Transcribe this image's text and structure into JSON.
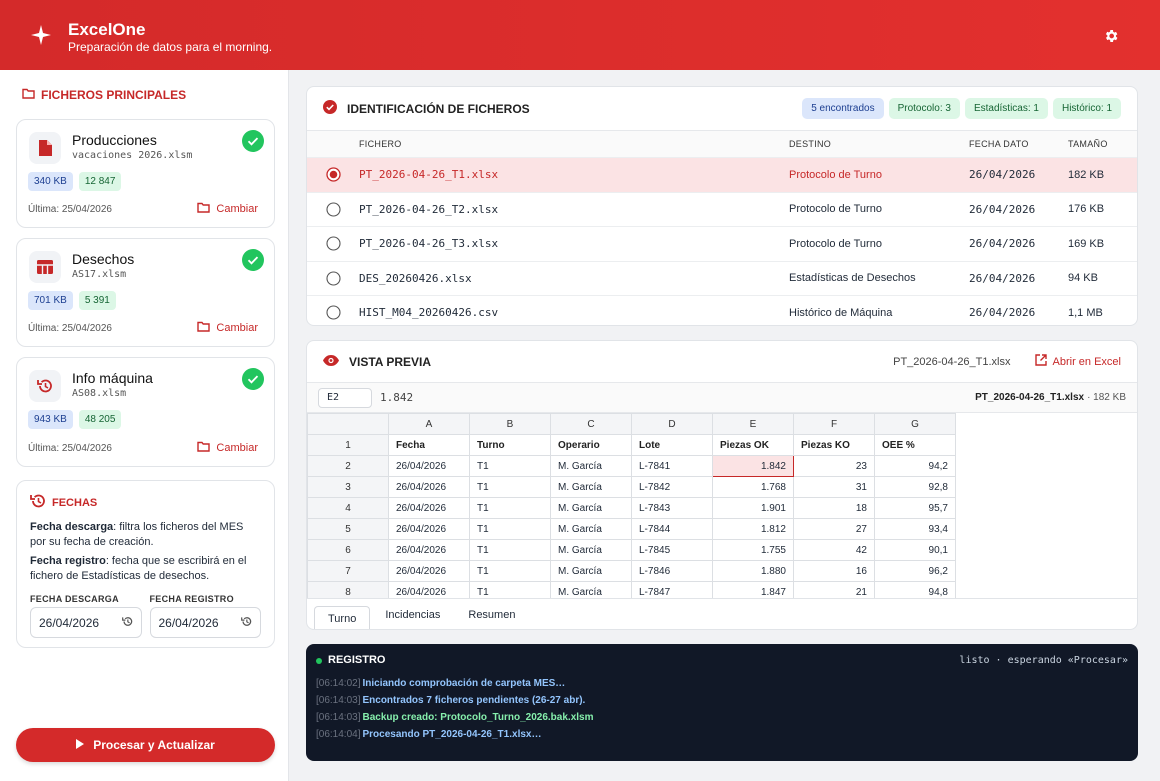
{
  "header": {
    "title": "ExcelOne",
    "subtitle": "Preparación de datos para el morning."
  },
  "sidebar": {
    "section_title": "FICHEROS PRINCIPALES",
    "files": [
      {
        "name": "Producciones",
        "file": "vacaciones 2026.xlsm",
        "size": "340 KB",
        "rows": "12 847",
        "last": "Última: 25/04/2026",
        "action": "Cambiar"
      },
      {
        "name": "Desechos",
        "file": "AS17.xlsm",
        "size": "701 KB",
        "rows": "5 391",
        "last": "Última: 25/04/2026",
        "action": "Cambiar"
      },
      {
        "name": "Info máquina",
        "file": "AS08.xlsm",
        "size": "943 KB",
        "rows": "48 205",
        "last": "Última: 25/04/2026",
        "action": "Cambiar"
      }
    ],
    "dates": {
      "title": "FECHAS",
      "notes": [
        {
          "term": "Fecha descarga",
          "text": ": filtra los ficheros del MES por su fecha de creación."
        },
        {
          "term": "Fecha registro",
          "text": ": fecha que se escribirá en el fichero de Estadísticas de desechos."
        }
      ],
      "fields": [
        {
          "label": "FECHA DESCARGA",
          "value": "26/04/2026"
        },
        {
          "label": "FECHA REGISTRO",
          "value": "26/04/2026"
        }
      ]
    },
    "button": "Procesar y Actualizar"
  },
  "identification": {
    "title": "IDENTIFICACIÓN DE FICHEROS",
    "badges": [
      "5 encontrados",
      "Protocolo: 3",
      "Estadísticas: 1",
      "Histórico: 1"
    ],
    "columns": [
      "FICHERO",
      "DESTINO",
      "FECHA DATO",
      "TAMAÑO"
    ],
    "rows": [
      [
        "PT_2026-04-26_T1.xlsx",
        "Protocolo de Turno",
        "26/04/2026",
        "182 KB"
      ],
      [
        "PT_2026-04-26_T2.xlsx",
        "Protocolo de Turno",
        "26/04/2026",
        "176 KB"
      ],
      [
        "PT_2026-04-26_T3.xlsx",
        "Protocolo de Turno",
        "26/04/2026",
        "169 KB"
      ],
      [
        "DES_20260426.xlsx",
        "Estadísticas de Desechos",
        "26/04/2026",
        "94 KB"
      ],
      [
        "HIST_M04_20260426.csv",
        "Histórico de Máquina",
        "26/04/2026",
        "1,1 MB"
      ]
    ]
  },
  "preview": {
    "title": "VISTA PREVIA",
    "file": "PT_2026-04-26_T1.xlsx",
    "open": "Abrir en Excel",
    "cell_ref": "E2",
    "cell_value": "1.842",
    "info_file": "PT_2026-04-26_T1.xlsx",
    "info_size": "· 182 KB",
    "columns": [
      "A",
      "B",
      "C",
      "D",
      "E",
      "F",
      "G"
    ],
    "rows": [
      {
        "num": "1",
        "cells": [
          "Fecha",
          "Turno",
          "Operario",
          "Lote",
          "Piezas OK",
          "Piezas KO",
          "OEE %"
        ]
      },
      {
        "num": "2",
        "cells": [
          "26/04/2026",
          "T1",
          "M. García",
          "L-7841",
          "1.842",
          "23",
          "94,2"
        ]
      },
      {
        "num": "3",
        "cells": [
          "26/04/2026",
          "T1",
          "M. García",
          "L-7842",
          "1.768",
          "31",
          "92,8"
        ]
      },
      {
        "num": "4",
        "cells": [
          "26/04/2026",
          "T1",
          "M. García",
          "L-7843",
          "1.901",
          "18",
          "95,7"
        ]
      },
      {
        "num": "5",
        "cells": [
          "26/04/2026",
          "T1",
          "M. García",
          "L-7844",
          "1.812",
          "27",
          "93,4"
        ]
      },
      {
        "num": "6",
        "cells": [
          "26/04/2026",
          "T1",
          "M. García",
          "L-7845",
          "1.755",
          "42",
          "90,1"
        ]
      },
      {
        "num": "7",
        "cells": [
          "26/04/2026",
          "T1",
          "M. García",
          "L-7846",
          "1.880",
          "16",
          "96,2"
        ]
      },
      {
        "num": "8",
        "cells": [
          "26/04/2026",
          "T1",
          "M. García",
          "L-7847",
          "1.847",
          "21",
          "94,8"
        ]
      }
    ],
    "tabs": [
      "Turno",
      "Incidencias",
      "Resumen"
    ]
  },
  "log": {
    "title": "REGISTRO",
    "status": "listo · esperando «Procesar»",
    "entries": [
      {
        "time": "[06:14:02]",
        "text": "Iniciando comprobación de carpeta MES…"
      },
      {
        "time": "[06:14:03]",
        "text": "Encontrados 7 ficheros pendientes (26-27 abr)."
      },
      {
        "time": "[06:14:03]",
        "text": "Backup creado: Protocolo_Turno_2026.bak.xlsm"
      },
      {
        "time": "[06:14:04]",
        "text": "Procesando PT_2026-04-26_T1.xlsx…"
      }
    ]
  }
}
